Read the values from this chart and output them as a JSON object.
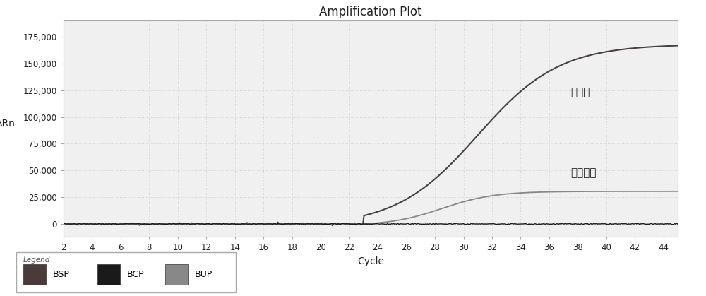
{
  "title": "Amplification Plot",
  "xlabel": "Cycle",
  "ylabel": "ΔRn",
  "xlim": [
    2,
    45
  ],
  "ylim": [
    -12000,
    190000
  ],
  "yticks": [
    0,
    25000,
    50000,
    75000,
    100000,
    125000,
    150000,
    175000
  ],
  "ytick_labels": [
    "0",
    "25,000",
    "50,000",
    "75,000",
    "100,000",
    "125,000",
    "150,000",
    "175,000"
  ],
  "xticks": [
    2,
    4,
    6,
    8,
    10,
    12,
    14,
    16,
    18,
    20,
    22,
    24,
    26,
    28,
    30,
    32,
    34,
    36,
    38,
    40,
    42,
    44
  ],
  "annotation_beichihu": "北柴胡",
  "annotation_tongyong": "通用探针",
  "legend_items": [
    "BSP",
    "BCP",
    "BUP"
  ],
  "legend_colors": [
    "#4a3a3a",
    "#1a1a1a",
    "#888888"
  ],
  "bsp_color": "#4a4040",
  "bcp_color": "#1a1a1a",
  "bup_color": "#888888",
  "background_color": "#f0f0f0",
  "grid_color": "#d0d0d0",
  "title_fontsize": 12,
  "label_fontsize": 10,
  "tick_fontsize": 8.5,
  "annot_fontsize": 11
}
